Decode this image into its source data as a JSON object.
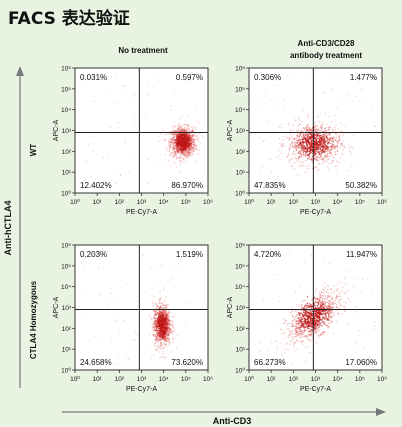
{
  "title": "FACS 表达验证",
  "columns": [
    "No treatment",
    "Anti-CD3/CD28\nantibody treatment"
  ],
  "rows": [
    "WT",
    "CTLA4 Homozygous"
  ],
  "big_axis_labels": {
    "y": "Anti-hCTLA4",
    "x": "Anti-CD3"
  },
  "colors": {
    "background": "#e8f3e1",
    "dots": "#d94040",
    "dots_dense": "#c01818",
    "axis": "#333333"
  },
  "chart_data": [
    {
      "type": "scatter",
      "row": "WT",
      "column": "No treatment",
      "xlabel": "PE-Cy7-A",
      "ylabel": "APC-A",
      "xlim": [
        1,
        1000000
      ],
      "ylim": [
        1,
        1000000
      ],
      "log_scale": true,
      "x_gate": 800,
      "y_gate": 800,
      "quadrant_percent": {
        "upper_left": "0.031%",
        "upper_right": "0.597%",
        "lower_left": "12.402%",
        "lower_right": "86.970%"
      },
      "population_center": [
        70000,
        300
      ],
      "population_shape": "dense cluster right of gate"
    },
    {
      "type": "scatter",
      "row": "WT",
      "column": "Anti-CD3/CD28 antibody treatment",
      "xlabel": "PE-Cy7-A",
      "ylabel": "APC-A",
      "xlim": [
        1,
        1000000
      ],
      "ylim": [
        1,
        1000000
      ],
      "log_scale": true,
      "x_gate": 800,
      "y_gate": 800,
      "quadrant_percent": {
        "upper_left": "0.306%",
        "upper_right": "1.477%",
        "lower_left": "47.835%",
        "lower_right": "50.382%"
      },
      "population_center": [
        800,
        250
      ],
      "population_shape": "diffuse cluster straddling gate"
    },
    {
      "type": "scatter",
      "row": "CTLA4 Homozygous",
      "column": "No treatment",
      "xlabel": "PE-Cy7-A",
      "ylabel": "APC-A",
      "xlim": [
        1,
        1000000
      ],
      "ylim": [
        1,
        1000000
      ],
      "log_scale": true,
      "x_gate": 800,
      "y_gate": 800,
      "quadrant_percent": {
        "upper_left": "0.203%",
        "upper_right": "1.519%",
        "lower_left": "24.658%",
        "lower_right": "73.620%"
      },
      "population_center": [
        8000,
        150
      ],
      "population_shape": "vertical streak right of gate"
    },
    {
      "type": "scatter",
      "row": "CTLA4 Homozygous",
      "column": "Anti-CD3/CD28 antibody treatment",
      "xlabel": "PE-Cy7-A",
      "ylabel": "APC-A",
      "xlim": [
        1,
        1000000
      ],
      "ylim": [
        1,
        1000000
      ],
      "log_scale": true,
      "x_gate": 800,
      "y_gate": 800,
      "quadrant_percent": {
        "upper_left": "4.720%",
        "upper_right": "11.947%",
        "lower_left": "66.273%",
        "lower_right": "17.060%"
      },
      "population_center": [
        800,
        400
      ],
      "population_shape": "diagonal smear"
    }
  ]
}
